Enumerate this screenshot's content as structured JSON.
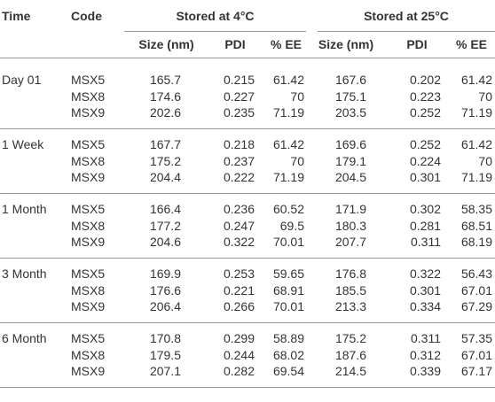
{
  "table": {
    "header": {
      "time": "Time",
      "code": "Code",
      "group_a": "Stored at 4°C",
      "group_b": "Stored at 25°C",
      "sub": [
        "Size (nm)",
        "PDI",
        "% EE",
        "Size (nm)",
        "PDI",
        "% EE"
      ]
    },
    "groups": [
      {
        "time": "Day 01",
        "rows": [
          [
            "MSX5",
            165.7,
            0.215,
            61.42,
            167.6,
            0.202,
            61.42
          ],
          [
            "MSX8",
            174.6,
            0.227,
            70,
            175.1,
            0.223,
            70
          ],
          [
            "MSX9",
            202.6,
            0.235,
            71.19,
            203.5,
            0.252,
            71.19
          ]
        ]
      },
      {
        "time": "1 Week",
        "rows": [
          [
            "MSX5",
            167.7,
            0.218,
            61.42,
            169.6,
            0.252,
            61.42
          ],
          [
            "MSX8",
            175.2,
            0.237,
            70,
            179.1,
            0.224,
            70
          ],
          [
            "MSX9",
            204.4,
            0.222,
            71.19,
            204.5,
            0.301,
            71.19
          ]
        ]
      },
      {
        "time": "1 Month",
        "rows": [
          [
            "MSX5",
            166.4,
            0.236,
            60.52,
            171.9,
            0.302,
            58.35
          ],
          [
            "MSX8",
            177.2,
            0.247,
            69.5,
            180.3,
            0.281,
            68.51
          ],
          [
            "MSX9",
            204.6,
            0.322,
            70.01,
            207.7,
            0.311,
            68.19
          ]
        ]
      },
      {
        "time": "3 Month",
        "rows": [
          [
            "MSX5",
            169.9,
            0.253,
            59.65,
            176.8,
            0.322,
            56.43
          ],
          [
            "MSX8",
            176.6,
            0.221,
            68.91,
            185.5,
            0.301,
            67.01
          ],
          [
            "MSX9",
            206.4,
            0.266,
            70.01,
            213.3,
            0.334,
            67.29
          ]
        ]
      },
      {
        "time": "6 Month",
        "rows": [
          [
            "MSX5",
            170.8,
            0.299,
            58.89,
            175.2,
            0.311,
            57.35
          ],
          [
            "MSX8",
            179.5,
            0.244,
            68.02,
            187.6,
            0.312,
            67.01
          ],
          [
            "MSX9",
            207.1,
            0.282,
            69.54,
            214.5,
            0.339,
            67.17
          ]
        ]
      }
    ]
  }
}
